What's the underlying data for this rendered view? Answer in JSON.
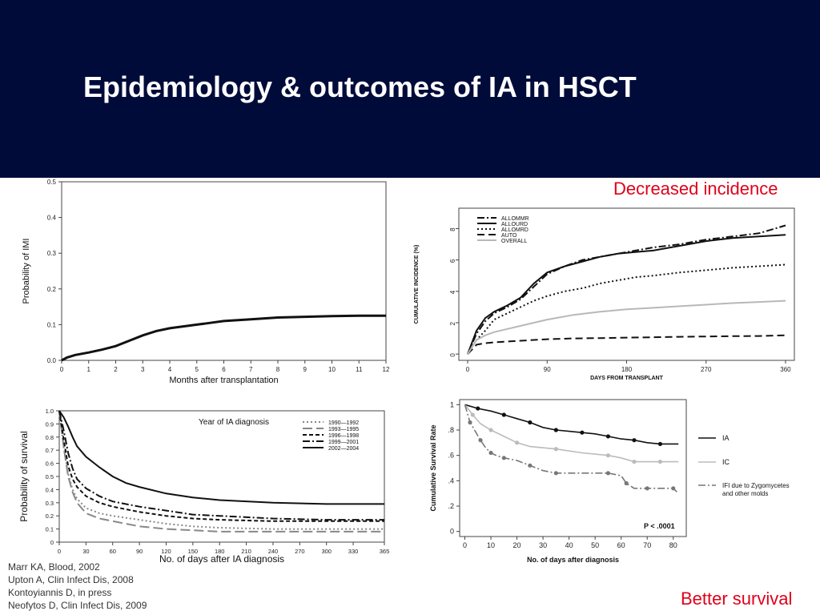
{
  "slide": {
    "title": "Epidemiology & outcomes of IA in HSCT",
    "callout_top": "Decreased incidence",
    "callout_bottom": "Better survival",
    "references": [
      "Marr KA, Blood, 2002",
      "Upton A, Clin Infect Dis, 2008",
      "Kontoyiannis D, in press",
      "Neofytos D, Clin Infect Dis, 2009"
    ],
    "colors": {
      "header_bg": "#000b3a",
      "title": "#ffffff",
      "callout": "#e0001a"
    }
  },
  "chart_data": [
    {
      "id": "imi",
      "type": "line",
      "title": "",
      "xlabel": "Months after transplantation",
      "ylabel": "Probability of IMI",
      "xlim": [
        0,
        12
      ],
      "ylim": [
        0,
        0.5
      ],
      "xticks": [
        0,
        1,
        2,
        3,
        4,
        5,
        6,
        7,
        8,
        9,
        10,
        11,
        12
      ],
      "yticks": [
        0,
        0.1,
        0.2,
        0.3,
        0.4,
        0.5
      ],
      "yticklabels": [
        "0.0",
        "0.1",
        "0.2",
        "0.3",
        "0.4",
        "0.5"
      ],
      "series": [
        {
          "x": [
            0,
            0.2,
            0.5,
            1,
            1.5,
            2,
            2.5,
            3,
            3.5,
            4,
            4.5,
            5,
            5.5,
            6,
            7,
            8,
            9,
            10,
            11,
            12
          ],
          "y": [
            0,
            0.008,
            0.015,
            0.022,
            0.03,
            0.04,
            0.055,
            0.07,
            0.082,
            0.09,
            0.095,
            0.1,
            0.105,
            0.11,
            0.115,
            0.12,
            0.122,
            0.124,
            0.125,
            0.125
          ]
        }
      ]
    },
    {
      "id": "incidence",
      "type": "line",
      "title": "",
      "xlabel": "DAYS FROM TRANSPLANT",
      "ylabel": "CUMULATIVE INCIDENCE (%)",
      "xlim": [
        -10,
        370
      ],
      "ylim": [
        -0.4,
        9.3
      ],
      "xticks": [
        0,
        90,
        180,
        270,
        360
      ],
      "yticks": [
        0,
        2,
        4,
        6,
        8
      ],
      "legend_position": "top-left",
      "series": [
        {
          "name": "ALLOMMR",
          "dash": "dashdot",
          "color": "#111111",
          "x": [
            0,
            10,
            20,
            30,
            45,
            60,
            75,
            90,
            110,
            130,
            150,
            170,
            190,
            210,
            240,
            270,
            300,
            330,
            360
          ],
          "y": [
            0,
            1.3,
            2.1,
            2.6,
            3,
            3.5,
            4.3,
            5.1,
            5.6,
            6,
            6.2,
            6.4,
            6.6,
            6.8,
            7,
            7.3,
            7.5,
            7.7,
            8.2
          ]
        },
        {
          "name": "ALLOURD",
          "dash": "solid",
          "color": "#111111",
          "x": [
            0,
            10,
            20,
            30,
            45,
            60,
            75,
            90,
            110,
            130,
            150,
            170,
            190,
            210,
            240,
            270,
            300,
            330,
            360
          ],
          "y": [
            0,
            1.5,
            2.3,
            2.7,
            3.1,
            3.6,
            4.5,
            5.2,
            5.6,
            5.9,
            6.2,
            6.4,
            6.5,
            6.6,
            6.9,
            7.2,
            7.4,
            7.5,
            7.6
          ]
        },
        {
          "name": "ALLOMRD",
          "dash": "dotted",
          "color": "#111111",
          "x": [
            0,
            10,
            20,
            30,
            45,
            60,
            75,
            90,
            110,
            130,
            150,
            170,
            190,
            210,
            240,
            270,
            300,
            330,
            360
          ],
          "y": [
            0,
            0.9,
            1.5,
            2.2,
            2.6,
            3,
            3.4,
            3.7,
            4,
            4.2,
            4.5,
            4.7,
            4.9,
            5,
            5.2,
            5.35,
            5.5,
            5.6,
            5.7
          ]
        },
        {
          "name": "AUTO",
          "dash": "dashed",
          "color": "#111111",
          "x": [
            0,
            10,
            20,
            30,
            60,
            90,
            120,
            150,
            180,
            210,
            240,
            270,
            300,
            330,
            360
          ],
          "y": [
            0,
            0.6,
            0.7,
            0.75,
            0.85,
            0.95,
            1,
            1.02,
            1.05,
            1.07,
            1.1,
            1.12,
            1.14,
            1.15,
            1.2
          ]
        },
        {
          "name": "OVERALL",
          "dash": "solid",
          "color": "#b8b8b8",
          "x": [
            0,
            10,
            20,
            30,
            45,
            60,
            90,
            120,
            150,
            180,
            210,
            240,
            270,
            300,
            330,
            360
          ],
          "y": [
            0,
            0.9,
            1.2,
            1.4,
            1.6,
            1.8,
            2.2,
            2.5,
            2.7,
            2.85,
            2.95,
            3.05,
            3.15,
            3.25,
            3.32,
            3.4
          ]
        }
      ]
    },
    {
      "id": "survival_1990",
      "type": "line",
      "title": "Year of IA diagnosis",
      "xlabel": "No. of days after IA diagnosis",
      "ylabel": "Probability of survival",
      "xlim": [
        0,
        365
      ],
      "ylim": [
        0,
        1
      ],
      "xticks": [
        0,
        30,
        60,
        90,
        120,
        150,
        180,
        210,
        240,
        270,
        300,
        330,
        365
      ],
      "yticks": [
        0,
        0.1,
        0.2,
        0.3,
        0.4,
        0.5,
        0.6,
        0.7,
        0.8,
        0.9,
        1.0
      ],
      "yticklabels": [
        "0",
        "0.1",
        "0.2",
        "0.3",
        "0.4",
        "0.5",
        "0.6",
        "0.7",
        "0.8",
        "0.9",
        "1.0"
      ],
      "legend_position": "top-right",
      "series": [
        {
          "name": "1990—1992",
          "dash": "dotted",
          "color": "#888888",
          "x": [
            0,
            5,
            10,
            15,
            20,
            30,
            45,
            60,
            90,
            120,
            150,
            180,
            240,
            300,
            365
          ],
          "y": [
            1,
            0.72,
            0.52,
            0.4,
            0.33,
            0.26,
            0.22,
            0.2,
            0.17,
            0.14,
            0.12,
            0.11,
            0.1,
            0.1,
            0.1
          ]
        },
        {
          "name": "1993—1995",
          "dash": "longdash",
          "color": "#888888",
          "x": [
            0,
            5,
            10,
            15,
            20,
            30,
            45,
            60,
            90,
            120,
            150,
            180,
            240,
            300,
            365
          ],
          "y": [
            1,
            0.72,
            0.5,
            0.38,
            0.3,
            0.22,
            0.18,
            0.16,
            0.12,
            0.1,
            0.09,
            0.08,
            0.08,
            0.08,
            0.08
          ]
        },
        {
          "name": "1996—1998",
          "dash": "shortdash",
          "color": "#111111",
          "x": [
            0,
            5,
            10,
            15,
            20,
            30,
            45,
            60,
            90,
            120,
            150,
            180,
            240,
            300,
            365
          ],
          "y": [
            1,
            0.78,
            0.58,
            0.48,
            0.42,
            0.35,
            0.3,
            0.27,
            0.23,
            0.2,
            0.18,
            0.17,
            0.16,
            0.16,
            0.16
          ]
        },
        {
          "name": "1999—2001",
          "dash": "dashdot",
          "color": "#111111",
          "x": [
            0,
            5,
            10,
            15,
            20,
            30,
            45,
            60,
            90,
            120,
            150,
            180,
            240,
            300,
            365
          ],
          "y": [
            1,
            0.85,
            0.68,
            0.56,
            0.48,
            0.41,
            0.35,
            0.31,
            0.27,
            0.24,
            0.21,
            0.2,
            0.18,
            0.17,
            0.17
          ]
        },
        {
          "name": "2002—2004",
          "dash": "solid",
          "color": "#111111",
          "x": [
            0,
            5,
            10,
            15,
            20,
            30,
            45,
            60,
            75,
            90,
            120,
            150,
            180,
            240,
            300,
            365
          ],
          "y": [
            1,
            0.95,
            0.88,
            0.8,
            0.73,
            0.65,
            0.57,
            0.5,
            0.45,
            0.42,
            0.37,
            0.34,
            0.32,
            0.3,
            0.29,
            0.29
          ]
        }
      ]
    },
    {
      "id": "survival_zygo",
      "type": "line",
      "title": "",
      "xlabel": "No. of days after diagnosis",
      "ylabel": "Cumulative Survival Rate",
      "xlim": [
        -2,
        85
      ],
      "ylim": [
        -0.04,
        1.04
      ],
      "xticks": [
        0,
        10,
        20,
        30,
        40,
        50,
        60,
        70,
        80
      ],
      "yticks": [
        0,
        0.2,
        0.4,
        0.6,
        0.8,
        1
      ],
      "yticklabels": [
        "0",
        ".2",
        ".4",
        ".6",
        ".8",
        "1"
      ],
      "annotation": "P < .0001",
      "legend_position": "right",
      "series": [
        {
          "name": "IA",
          "dash": "solid",
          "color": "#111111",
          "x": [
            0,
            5,
            10,
            15,
            20,
            25,
            30,
            35,
            40,
            45,
            50,
            55,
            60,
            65,
            70,
            75,
            82
          ],
          "y": [
            1,
            0.97,
            0.95,
            0.92,
            0.89,
            0.86,
            0.82,
            0.8,
            0.79,
            0.78,
            0.77,
            0.75,
            0.73,
            0.72,
            0.7,
            0.69,
            0.69
          ]
        },
        {
          "name": "IC",
          "dash": "solid",
          "color": "#bbbbbb",
          "x": [
            0,
            3,
            6,
            10,
            15,
            20,
            25,
            35,
            45,
            55,
            60,
            65,
            70,
            75,
            82
          ],
          "y": [
            1,
            0.92,
            0.85,
            0.8,
            0.75,
            0.7,
            0.67,
            0.65,
            0.62,
            0.6,
            0.58,
            0.55,
            0.55,
            0.55,
            0.55
          ]
        },
        {
          "name": "IFI due to Zygomycetes and other molds",
          "dash": "dashdot",
          "color": "#777777",
          "x": [
            0,
            2,
            4,
            6,
            8,
            10,
            12,
            15,
            20,
            25,
            30,
            35,
            45,
            55,
            60,
            62,
            65,
            70,
            75,
            80,
            82
          ],
          "y": [
            1,
            0.86,
            0.79,
            0.72,
            0.66,
            0.62,
            0.6,
            0.58,
            0.56,
            0.52,
            0.48,
            0.46,
            0.46,
            0.46,
            0.44,
            0.38,
            0.34,
            0.34,
            0.34,
            0.34,
            0.3
          ]
        }
      ]
    }
  ]
}
